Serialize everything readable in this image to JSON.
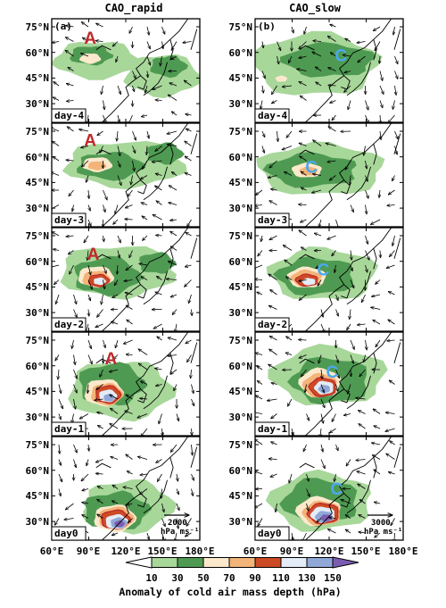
{
  "columns": [
    {
      "title": "CAO_rapid",
      "letter": "(a)",
      "marker": "A",
      "marker_color": "#c0282a",
      "ref_value": "2000",
      "ref_unit": "hPa ms⁻¹"
    },
    {
      "title": "CAO_slow",
      "letter": "(b)",
      "marker": "C",
      "marker_color": "#4aa8f0",
      "ref_value": "3000",
      "ref_unit": "hPa ms⁻¹"
    }
  ],
  "rows": [
    "day-4",
    "day-3",
    "day-2",
    "day-1",
    "day0"
  ],
  "lat_labels": [
    "75°N",
    "60°N",
    "45°N",
    "30°N"
  ],
  "lon_labels": [
    "60°E",
    "90°E",
    "120°E",
    "150°E",
    "180°E"
  ],
  "colorbar": {
    "title": "Anomaly of cold air mass depth (hPa)",
    "levels": [
      "10",
      "30",
      "50",
      "70",
      "90",
      "110",
      "130",
      "150"
    ],
    "colors": [
      "#ffffff",
      "#a8d79a",
      "#4f9a52",
      "#fce9cc",
      "#f2b478",
      "#cd4a26",
      "#e3ecf7",
      "#8fa8d8",
      "#7b5cb0"
    ]
  },
  "colors": {
    "coast": "#000000",
    "contour_red": "#c0282a",
    "light_green": "#a8d79a",
    "dark_green": "#4f9a52"
  }
}
